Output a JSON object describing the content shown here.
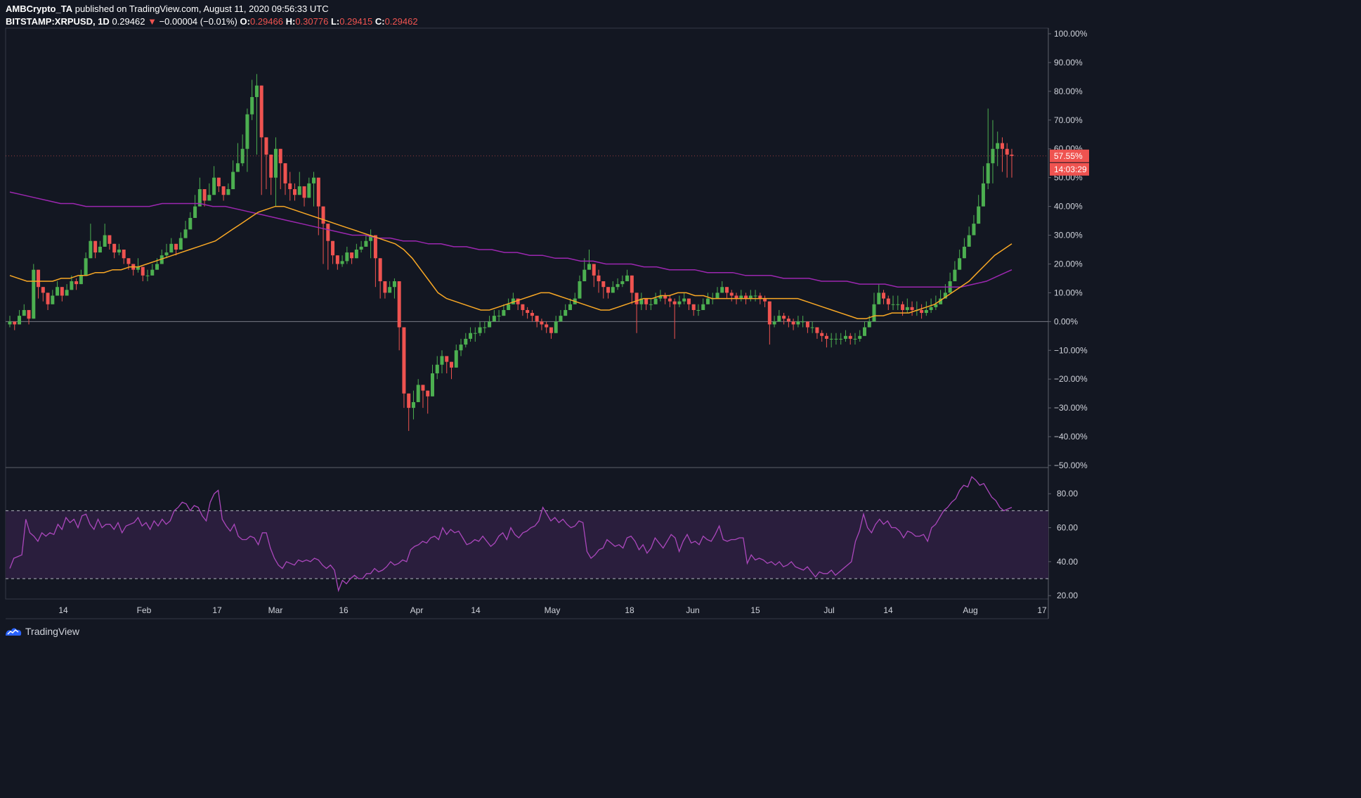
{
  "header": {
    "author": "AMBCrypto_TA",
    "published": "published on TradingView.com, August 11, 2020 09:56:33 UTC",
    "symbol": "BITSTAMP:XRPUSD, 1D",
    "last": "0.29462",
    "change": "−0.00004 (−0.01%)",
    "o_label": "O:",
    "o": "0.29466",
    "h_label": "H:",
    "h": "0.30776",
    "l_label": "L:",
    "l": "0.29415",
    "c_label": "C:",
    "c": "0.29462"
  },
  "footer": {
    "brand": "TradingView",
    "icon": "tradingview-logo-icon"
  },
  "colors": {
    "background": "#131722",
    "up": "#26a69a",
    "up_candle": "#4caf50",
    "down": "#ef5350",
    "ma_fast": "#f9a825",
    "ma_slow": "#9c27b0",
    "rsi_line": "#ab47bc",
    "rsi_band": "#2a1e3d",
    "axis_text": "#d1d4dc",
    "badge": "#ef5350"
  },
  "chart_data": [
    {
      "type": "candlestick",
      "title": "",
      "y_unit": "% change",
      "ylim": [
        -50,
        100
      ],
      "y_ticks": [
        "100.00%",
        "90.00%",
        "80.00%",
        "70.00%",
        "60.00%",
        "50.00%",
        "40.00%",
        "30.00%",
        "20.00%",
        "10.00%",
        "0.00%",
        "−10.00%",
        "−20.00%",
        "−30.00%",
        "−40.00%",
        "−50.00%"
      ],
      "x_ticks": [
        "14",
        "Feb",
        "17",
        "Mar",
        "16",
        "Apr",
        "14",
        "May",
        "18",
        "Jun",
        "15",
        "Jul",
        "14",
        "Aug",
        "17"
      ],
      "last_value_label": "57.55%",
      "countdown_label": "14:03:29",
      "candles_close_pct": [
        0,
        -1,
        2,
        4,
        1,
        18,
        12,
        10,
        6,
        9,
        12,
        9,
        11,
        14,
        13,
        16,
        22,
        28,
        24,
        26,
        30,
        27,
        24,
        25,
        22,
        20,
        18,
        19,
        16,
        16,
        18,
        20,
        23,
        24,
        27,
        25,
        29,
        32,
        36,
        40,
        46,
        42,
        44,
        50,
        47,
        44,
        46,
        52,
        55,
        60,
        72,
        78,
        82,
        64,
        58,
        50,
        60,
        55,
        48,
        46,
        44,
        47,
        43,
        48,
        50,
        40,
        34,
        28,
        23,
        20,
        21,
        24,
        22,
        25,
        26,
        28,
        30,
        22,
        14,
        10,
        12,
        14,
        -2,
        -25,
        -30,
        -28,
        -22,
        -24,
        -26,
        -18,
        -15,
        -12,
        -14,
        -16,
        -10,
        -8,
        -6,
        -4,
        -4,
        -2,
        -2,
        0,
        2,
        2,
        4,
        6,
        8,
        6,
        4,
        3,
        2,
        0,
        -1,
        -2,
        -4,
        0,
        2,
        4,
        6,
        8,
        14,
        18,
        20,
        16,
        14,
        12,
        10,
        12,
        13,
        14,
        16,
        10,
        6,
        8,
        6,
        6,
        8,
        9,
        8,
        7,
        6,
        7,
        8,
        6,
        4,
        4,
        6,
        8,
        8,
        10,
        12,
        10,
        9,
        8,
        9,
        8,
        9,
        9,
        8,
        7,
        -1,
        0,
        2,
        1,
        0,
        -1,
        0,
        0,
        -2,
        -2,
        -4,
        -5,
        -6,
        -6,
        -6,
        -6,
        -5,
        -6,
        -6,
        -5,
        -2,
        0,
        6,
        10,
        8,
        6,
        6,
        6,
        4,
        5,
        4,
        4,
        3,
        4,
        5,
        6,
        8,
        10,
        14,
        18,
        22,
        26,
        30,
        34,
        40,
        48,
        55,
        60,
        62,
        60,
        58,
        57.55
      ],
      "candles_high_pct": [
        2,
        0,
        4,
        6,
        3,
        20,
        14,
        12,
        8,
        11,
        14,
        11,
        13,
        16,
        15,
        18,
        24,
        34,
        27,
        28,
        34,
        29,
        26,
        27,
        24,
        22,
        20,
        22,
        18,
        18,
        20,
        22,
        25,
        27,
        29,
        27,
        31,
        35,
        38,
        44,
        50,
        46,
        48,
        54,
        50,
        46,
        48,
        56,
        62,
        65,
        74,
        84,
        86,
        70,
        62,
        56,
        64,
        58,
        52,
        52,
        48,
        52,
        46,
        50,
        52,
        42,
        36,
        30,
        25,
        22,
        23,
        26,
        24,
        27,
        28,
        30,
        32,
        24,
        16,
        12,
        14,
        15,
        0,
        -20,
        -26,
        -24,
        -20,
        -22,
        -24,
        -15,
        -12,
        -10,
        -12,
        -14,
        -8,
        -6,
        -4,
        -2,
        -2,
        0,
        0,
        2,
        4,
        4,
        6,
        8,
        10,
        8,
        6,
        5,
        4,
        2,
        1,
        0,
        -2,
        2,
        4,
        6,
        8,
        10,
        16,
        22,
        25,
        20,
        18,
        14,
        12,
        14,
        15,
        16,
        18,
        14,
        8,
        10,
        8,
        8,
        10,
        11,
        10,
        9,
        8,
        9,
        10,
        8,
        6,
        6,
        8,
        10,
        10,
        12,
        14,
        12,
        11,
        10,
        11,
        10,
        11,
        11,
        10,
        9,
        3,
        2,
        4,
        3,
        2,
        1,
        2,
        2,
        0,
        0,
        -2,
        -3,
        -4,
        -4,
        -4,
        -4,
        -3,
        -4,
        -4,
        -3,
        0,
        2,
        10,
        13,
        11,
        9,
        9,
        9,
        7,
        8,
        7,
        7,
        6,
        7,
        8,
        9,
        11,
        13,
        17,
        21,
        25,
        29,
        33,
        37,
        44,
        54,
        74,
        70,
        66,
        64,
        62,
        60,
        64
      ],
      "candles_low_pct": [
        -2,
        -3,
        0,
        2,
        -1,
        10,
        8,
        7,
        4,
        7,
        10,
        7,
        9,
        12,
        11,
        14,
        20,
        24,
        22,
        24,
        26,
        25,
        22,
        23,
        20,
        18,
        16,
        17,
        14,
        14,
        16,
        18,
        21,
        22,
        25,
        23,
        27,
        30,
        34,
        38,
        44,
        40,
        42,
        46,
        45,
        42,
        44,
        50,
        53,
        54,
        52,
        70,
        58,
        44,
        46,
        44,
        40,
        46,
        44,
        42,
        42,
        44,
        40,
        44,
        40,
        30,
        20,
        18,
        20,
        18,
        19,
        20,
        20,
        22,
        24,
        26,
        22,
        12,
        8,
        8,
        10,
        8,
        -10,
        -30,
        -38,
        -34,
        -28,
        -30,
        -32,
        -24,
        -20,
        -18,
        -18,
        -20,
        -14,
        -12,
        -9,
        -7,
        -7,
        -5,
        -4,
        -2,
        0,
        0,
        2,
        4,
        6,
        4,
        2,
        1,
        0,
        -2,
        -3,
        -4,
        -6,
        -2,
        0,
        2,
        4,
        6,
        12,
        16,
        18,
        12,
        10,
        8,
        8,
        10,
        11,
        12,
        14,
        6,
        -4,
        4,
        4,
        4,
        6,
        7,
        6,
        5,
        -6,
        5,
        6,
        4,
        2,
        2,
        4,
        6,
        6,
        8,
        10,
        8,
        7,
        6,
        7,
        6,
        7,
        7,
        6,
        5,
        -8,
        -2,
        0,
        -1,
        -2,
        -3,
        -2,
        -2,
        -4,
        -4,
        -6,
        -7,
        -9,
        -9,
        -8,
        -8,
        -7,
        -8,
        -8,
        -7,
        -4,
        -2,
        4,
        8,
        6,
        4,
        4,
        4,
        2,
        3,
        2,
        2,
        1,
        2,
        3,
        4,
        6,
        8,
        12,
        16,
        20,
        24,
        28,
        32,
        36,
        40,
        46,
        48,
        54,
        52,
        50,
        50,
        56
      ],
      "ma_fast_pct": [
        16,
        15,
        14,
        14,
        14,
        14,
        15,
        15,
        16,
        16,
        17,
        17,
        18,
        18,
        19,
        19,
        20,
        21,
        22,
        23,
        24,
        25,
        26,
        27,
        28,
        30,
        32,
        34,
        36,
        38,
        39,
        40,
        40,
        39,
        38,
        37,
        36,
        35,
        34,
        33,
        32,
        31,
        30,
        29,
        28,
        27,
        25,
        22,
        18,
        14,
        10,
        8,
        7,
        6,
        5,
        4,
        4,
        5,
        6,
        7,
        8,
        9,
        10,
        10,
        9,
        8,
        7,
        6,
        5,
        4,
        4,
        5,
        6,
        7,
        8,
        8,
        9,
        9,
        10,
        10,
        9,
        9,
        8,
        8,
        8,
        8,
        8,
        8,
        8,
        8,
        8,
        8,
        8,
        7,
        6,
        5,
        4,
        3,
        2,
        1,
        1,
        2,
        2,
        3,
        3,
        3,
        4,
        5,
        6,
        8,
        10,
        12,
        14,
        17,
        20,
        23,
        25,
        27
      ],
      "ma_slow_pct": [
        45,
        44,
        43,
        42,
        41,
        41,
        40,
        40,
        40,
        40,
        40,
        40,
        41,
        41,
        41,
        41,
        40,
        40,
        39,
        38,
        37,
        36,
        35,
        34,
        33,
        32,
        31,
        30,
        30,
        29,
        29,
        28,
        28,
        27,
        27,
        26,
        26,
        25,
        25,
        24,
        24,
        23,
        23,
        22,
        22,
        21,
        21,
        20,
        20,
        20,
        19,
        19,
        18,
        18,
        18,
        17,
        17,
        17,
        16,
        16,
        16,
        15,
        15,
        15,
        14,
        14,
        14,
        13,
        13,
        13,
        12,
        12,
        12,
        12,
        12,
        12,
        13,
        14,
        16,
        18
      ],
      "tick_label_note": ""
    },
    {
      "type": "line",
      "ylim": [
        18,
        95
      ],
      "y_ticks": [
        "80.00",
        "60.00",
        "40.00",
        "20.00"
      ],
      "upper_band": 70,
      "lower_band": 30,
      "rsi_values": [
        36,
        42,
        43,
        44,
        65,
        57,
        55,
        52,
        57,
        55,
        57,
        56,
        62,
        59,
        66,
        63,
        65,
        60,
        67,
        68,
        62,
        59,
        65,
        60,
        62,
        62,
        59,
        63,
        57,
        61,
        62,
        63,
        66,
        61,
        63,
        59,
        64,
        61,
        65,
        62,
        64,
        70,
        72,
        75,
        74,
        70,
        73,
        72,
        67,
        64,
        75,
        80,
        82,
        65,
        61,
        58,
        62,
        55,
        53,
        53,
        55,
        54,
        50,
        57,
        57,
        48,
        42,
        38,
        36,
        40,
        39,
        38,
        41,
        40,
        41,
        40,
        42,
        41,
        38,
        36,
        38,
        35,
        23,
        29,
        27,
        30,
        32,
        30,
        30,
        33,
        33,
        36,
        34,
        35,
        37,
        40,
        38,
        39,
        41,
        40,
        47,
        49,
        50,
        52,
        51,
        54,
        55,
        53,
        60,
        56,
        59,
        57,
        58,
        54,
        50,
        51,
        53,
        52,
        55,
        52,
        49,
        51,
        55,
        57,
        53,
        60,
        56,
        54,
        57,
        58,
        60,
        61,
        64,
        72,
        68,
        64,
        66,
        63,
        65,
        62,
        60,
        61,
        64,
        63,
        46,
        42,
        44,
        47,
        48,
        53,
        51,
        49,
        50,
        48,
        54,
        55,
        52,
        47,
        50,
        45,
        48,
        54,
        51,
        48,
        52,
        56,
        54,
        46,
        52,
        56,
        51,
        52,
        50,
        55,
        53,
        52,
        56,
        61,
        53,
        52,
        53,
        53,
        54,
        54,
        39,
        44,
        41,
        42,
        41,
        39,
        40,
        38,
        40,
        37,
        38,
        40,
        37,
        36,
        35,
        37,
        34,
        31,
        34,
        33,
        33,
        35,
        32,
        34,
        36,
        38,
        40,
        52,
        58,
        68,
        60,
        57,
        62,
        65,
        62,
        64,
        60,
        60,
        58,
        54,
        58,
        57,
        55,
        55,
        56,
        52,
        60,
        62,
        66,
        70,
        72,
        75,
        77,
        82,
        85,
        84,
        90,
        88,
        85,
        86,
        82,
        78,
        76,
        72,
        70,
        71,
        72
      ],
      "tick_label_note": ""
    }
  ]
}
